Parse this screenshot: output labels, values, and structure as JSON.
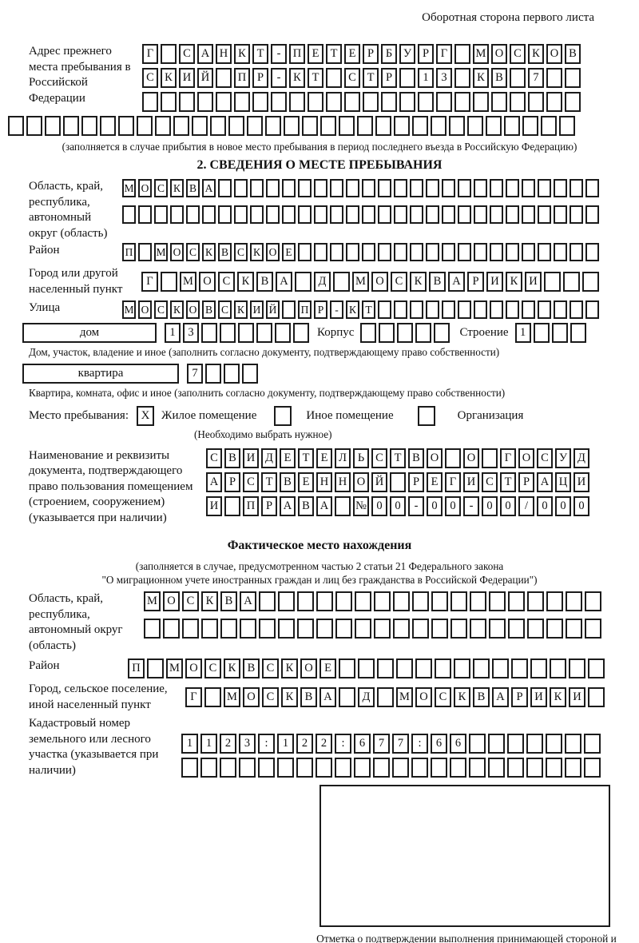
{
  "page": {
    "header_note": "Оборотная сторона первого листа"
  },
  "prev_address": {
    "label": "Адрес прежнего места пребывания в Российской Федерации",
    "rows": [
      {
        "cells": 24,
        "text": "Г САНКТ-ПЕТЕРБУРГ МОСКОВ"
      },
      {
        "cells": 24,
        "text": "СКИЙ ПР-КТ СТР 13 КВ 7"
      },
      {
        "cells": 24,
        "text": ""
      },
      {
        "cells": 31,
        "text": ""
      }
    ],
    "note": "(заполняется в случае прибытия в новое место пребывания в период последнего въезда в Российскую Федерацию)"
  },
  "section2": {
    "title": "2. СВЕДЕНИЯ О МЕСТЕ ПРЕБЫВАНИЯ",
    "region": {
      "label": "Область, край, республика, автономный округ (область)",
      "rows": [
        {
          "cells": 30,
          "text": "МОСКВА"
        },
        {
          "cells": 30,
          "text": ""
        }
      ]
    },
    "district": {
      "label": "Район",
      "row": {
        "cells": 30,
        "text": "П МОСКВСКОЕ"
      }
    },
    "city": {
      "label": "Город или другой населенный пункт",
      "row": {
        "cells": 24,
        "text": "Г МОСКВА Д МОСКВАРИКИ"
      }
    },
    "street": {
      "label": "Улица",
      "row": {
        "cells": 30,
        "text": "МОСКОВСКИЙ ПР-КТ"
      }
    },
    "house": {
      "box_label": "дом",
      "row": {
        "cells": 8,
        "text": "13"
      },
      "korpus_label": "Корпус",
      "korpus_row": {
        "cells": 5,
        "text": ""
      },
      "stroenie_label": "Строение",
      "stroenie_row": {
        "cells": 4,
        "text": "1"
      },
      "note": "Дом, участок, владение и иное (заполнить согласно документу, подтверждающему право собственности)"
    },
    "apartment": {
      "box_label": "квартира",
      "row": {
        "cells": 4,
        "text": "7"
      },
      "note": "Квартира, комната, офис и иное (заполнить согласно документу, подтверждающему право собственности)"
    },
    "stay_type": {
      "label": "Место пребывания:",
      "options": [
        {
          "label": "Жилое помещение",
          "value": "X"
        },
        {
          "label": "Иное помещение",
          "value": ""
        },
        {
          "label": "Организация",
          "value": ""
        }
      ],
      "note": "(Необходимо выбрать нужное)"
    },
    "document": {
      "label": "Наименование и реквизиты документа, подтверждающего право пользования помещением (строением, сооружением) (указывается при наличии)",
      "rows": [
        {
          "cells": 21,
          "text": "СВИДЕТЕЛЬСТВО О ГОСУД"
        },
        {
          "cells": 21,
          "text": "АРСТВЕННОЙ РЕГИСТРАЦИ"
        },
        {
          "cells": 21,
          "text": "И ПРАВА №00-00-00/000"
        }
      ]
    }
  },
  "actual_location": {
    "title": "Фактическое место нахождения",
    "note1": "(заполняется в случае, предусмотренном частью 2 статьи 21 Федерального закона",
    "note2": "\"О миграционном учете иностранных граждан и лиц без гражданства в Российской Федерации\")",
    "region": {
      "label": "Область, край, республика, автономный округ (область)",
      "rows": [
        {
          "cells": 24,
          "text": "МОСКВА"
        },
        {
          "cells": 24,
          "text": ""
        }
      ]
    },
    "district": {
      "label": "Район",
      "row": {
        "cells": 25,
        "text": "П МОСКВСКОЕ"
      }
    },
    "city": {
      "label": "Город, сельское поселение, иной населенный пункт",
      "row": {
        "cells": 22,
        "text": "Г МОСКВА Д МОСКВАРИКИ"
      }
    },
    "cadastral": {
      "label": "Кадастровый номер земельного или лесного участка (указывается при наличии)",
      "rows": [
        {
          "cells": 22,
          "text": "1123:122:677:66"
        },
        {
          "cells": 22,
          "text": ""
        }
      ]
    }
  },
  "confirmation": {
    "note": "Отметка о подтверждении выполнения принимающей стороной и иностранным гражданином или лицом без гражданства действий, необходимых для его постановки на учет по месту пребывания"
  }
}
